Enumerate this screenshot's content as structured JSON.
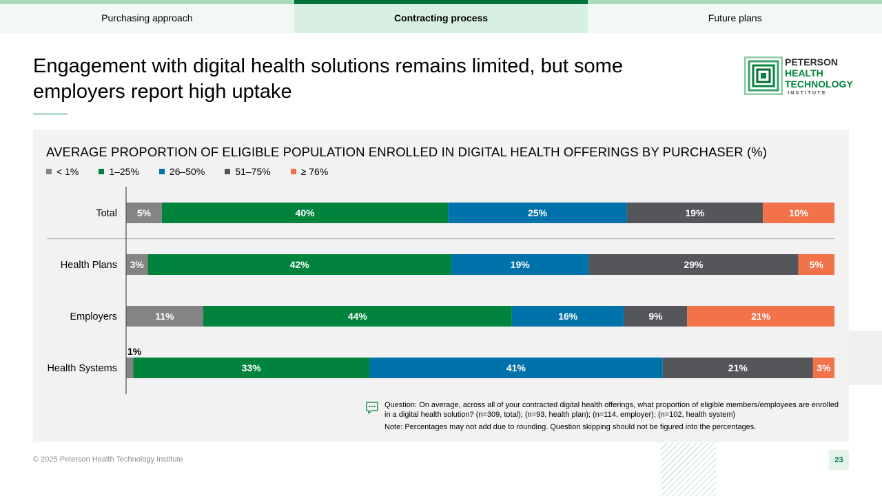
{
  "tabs": [
    {
      "label": "Purchasing approach"
    },
    {
      "label": "Contracting process"
    },
    {
      "label": "Future plans"
    }
  ],
  "title": "Engagement with digital health solutions remains limited, but some employers report high uptake",
  "logo": {
    "line1": "PETERSON",
    "line2": "HEALTH",
    "line3": "TECHNOLOGY",
    "line4": "INSTITUTE"
  },
  "chart_data": {
    "type": "bar",
    "orientation": "horizontal-stacked-100",
    "title": "AVERAGE PROPORTION OF ELIGIBLE POPULATION ENROLLED IN DIGITAL HEALTH OFFERINGS BY PURCHASER (%)",
    "categories": [
      "Total",
      "Health Plans",
      "Employers",
      "Health Systems"
    ],
    "series": [
      {
        "name": "< 1%",
        "color": "#848484",
        "values": [
          5,
          3,
          11,
          1
        ]
      },
      {
        "name": "1–25%",
        "color": "#00843d",
        "values": [
          40,
          42,
          44,
          33
        ]
      },
      {
        "name": "26–50%",
        "color": "#0072aa",
        "values": [
          25,
          19,
          16,
          41
        ]
      },
      {
        "name": "51–75%",
        "color": "#55565a",
        "values": [
          19,
          29,
          9,
          21
        ]
      },
      {
        "name": "≥ 76%",
        "color": "#f2734a",
        "values": [
          10,
          5,
          21,
          3
        ]
      }
    ],
    "legend": "top-left",
    "xlim": [
      0,
      100
    ]
  },
  "note": {
    "question": "Question: On average, across all of your contracted digital health offerings, what proportion of eligible members/employees are enrolled in a digital health solution? (n=309, total); (n=93, health plan); (n=114, employer); (n=102, health system)",
    "disclaimer": "Note: Percentages may not add due to rounding. Question skipping should not be figured into the percentages."
  },
  "footer": {
    "copyright": "© 2025 Peterson Health Technology Institute"
  },
  "page_number": "23"
}
